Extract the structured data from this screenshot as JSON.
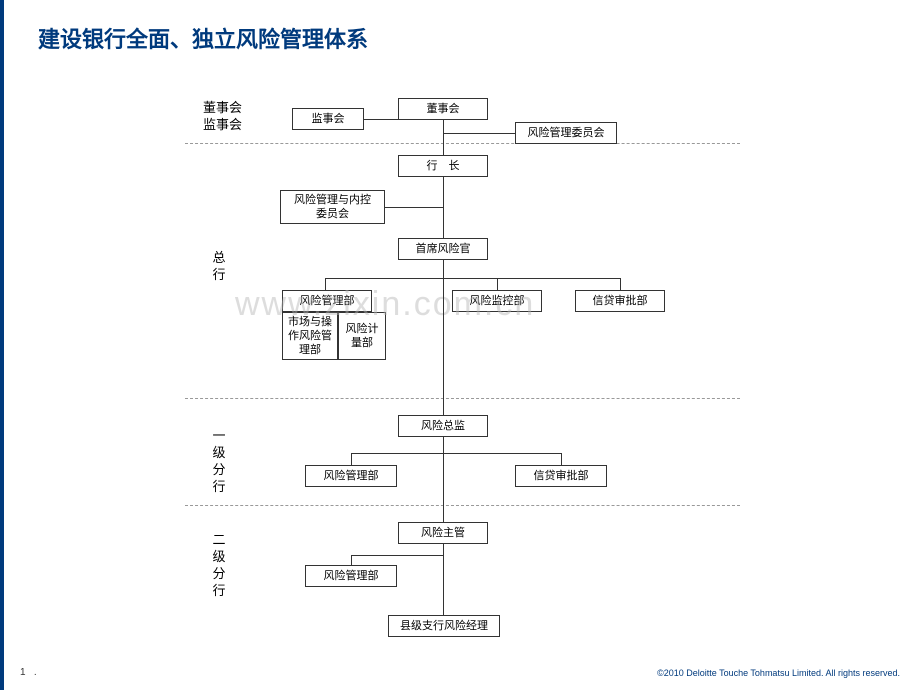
{
  "title": "建设银行全面、独立风险管理体系",
  "watermark": "www.zixin.com.cn",
  "footer": {
    "page": "1",
    "right": "©2010 Deloitte Touche Tohmatsu Limited. All rights reserved."
  },
  "sections": {
    "s1": "董事会\n监事会",
    "s2": "总\n行",
    "s3": "一\n级\n分\n行",
    "s4": "二\n级\n分\n行"
  },
  "nodes": {
    "board": "董事会",
    "supervisory": "监事会",
    "risk_committee": "风险管理委员会",
    "president": "行　长",
    "risk_internal": "风险管理与内控\n委员会",
    "cro": "首席风险官",
    "risk_dept1": "风险管理部",
    "risk_monitor": "风险监控部",
    "credit_review1": "信贷审批部",
    "market_op": "市场与操\n作风险管\n理部",
    "risk_calc": "风险计\n量部",
    "risk_director": "风险总监",
    "risk_dept2": "风险管理部",
    "credit_review2": "信贷审批部",
    "risk_mgr": "风险主管",
    "risk_dept3": "风险管理部",
    "county": "县级支行风险经理"
  },
  "style": {
    "title_color": "#003a7d",
    "border_color": "#333333",
    "dash_color": "#999999",
    "node_font": 11,
    "label_font": 13
  }
}
